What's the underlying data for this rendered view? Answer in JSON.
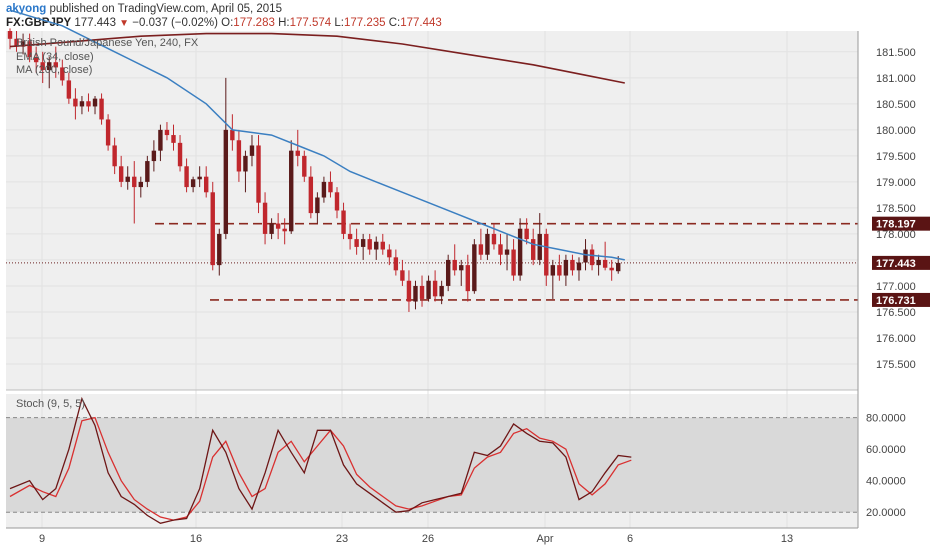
{
  "header": {
    "author": "akyong",
    "published_text": "published on TradingView.com, April 05, 2015",
    "symbol": "FX:GBPJPY",
    "last": "177.443",
    "change": "−0.037 (−0.02%)",
    "o_label": "O:",
    "o_value": "177.283",
    "h_label": "H:",
    "h_value": "177.574",
    "l_label": "L:",
    "l_value": "177.235",
    "c_label": "C:",
    "c_value": "177.443"
  },
  "legend": {
    "line1": "British Pound/Japanese Yen, 240, FX",
    "line2": "EMA (34, close)",
    "line3": "MA (200, close)",
    "stoch": "Stoch (9, 5, 5)"
  },
  "colors": {
    "up": "#5a1a1a",
    "down": "#c0272d",
    "ema": "#3b7fc1",
    "ma": "#7b1f1f",
    "level": "#8b2a20",
    "stoch_k": "#6e1616",
    "stoch_d": "#d93030",
    "stoch_band": "#d9d9d9",
    "panel_bg": "#eeeeee"
  },
  "chart_data": {
    "type": "candlestick",
    "title": "British Pound/Japanese Yen, 240, FX",
    "ylim": [
      175.0,
      181.9
    ],
    "y_ticks": [
      "181.500",
      "181.000",
      "180.500",
      "180.000",
      "179.500",
      "179.000",
      "178.500",
      "178.000",
      "177.500",
      "177.000",
      "176.500",
      "176.000",
      "175.500"
    ],
    "x_ticks": [
      "9",
      "16",
      "23",
      "26",
      "Apr",
      "6",
      "13"
    ],
    "price_labels": [
      {
        "text": "178.197",
        "value": 178.197,
        "style": "dark"
      },
      {
        "text": "177.443",
        "value": 177.443,
        "style": "dark"
      },
      {
        "text": "176.731",
        "value": 176.731,
        "style": "dark"
      }
    ],
    "support_resistance": [
      {
        "name": "resistance",
        "value": 178.197
      },
      {
        "name": "support",
        "value": 176.731
      }
    ],
    "current_price": 177.443,
    "candles": [
      [
        181.9,
        181.95,
        181.55,
        181.75
      ],
      [
        181.75,
        181.9,
        181.5,
        181.6
      ],
      [
        181.6,
        181.85,
        181.45,
        181.7
      ],
      [
        181.7,
        181.85,
        181.3,
        181.4
      ],
      [
        181.4,
        181.6,
        181.1,
        181.3
      ],
      [
        181.3,
        181.5,
        180.9,
        181.15
      ],
      [
        181.15,
        181.4,
        180.8,
        181.3
      ],
      [
        181.3,
        181.6,
        181.0,
        181.2
      ],
      [
        181.2,
        181.35,
        180.85,
        180.95
      ],
      [
        180.95,
        181.1,
        180.5,
        180.6
      ],
      [
        180.6,
        180.8,
        180.2,
        180.45
      ],
      [
        180.45,
        180.65,
        180.3,
        180.55
      ],
      [
        180.55,
        180.7,
        180.35,
        180.45
      ],
      [
        180.45,
        180.65,
        180.3,
        180.6
      ],
      [
        180.6,
        180.7,
        180.1,
        180.2
      ],
      [
        180.2,
        180.3,
        179.6,
        179.7
      ],
      [
        179.7,
        179.85,
        179.15,
        179.3
      ],
      [
        179.3,
        179.5,
        178.9,
        179.0
      ],
      [
        179.0,
        179.3,
        178.85,
        179.1
      ],
      [
        179.1,
        179.4,
        178.2,
        178.9
      ],
      [
        178.9,
        179.1,
        178.7,
        179.0
      ],
      [
        179.0,
        179.5,
        178.9,
        179.4
      ],
      [
        179.4,
        179.8,
        179.2,
        179.6
      ],
      [
        179.6,
        180.1,
        179.4,
        180.0
      ],
      [
        180.0,
        180.15,
        179.8,
        179.9
      ],
      [
        179.9,
        180.1,
        179.6,
        179.75
      ],
      [
        179.75,
        179.9,
        179.2,
        179.3
      ],
      [
        179.3,
        179.45,
        178.8,
        178.9
      ],
      [
        178.9,
        179.1,
        178.8,
        179.05
      ],
      [
        179.05,
        179.3,
        178.9,
        179.1
      ],
      [
        179.1,
        179.3,
        178.7,
        178.8
      ],
      [
        178.8,
        179.0,
        177.3,
        177.4
      ],
      [
        177.4,
        178.1,
        177.2,
        178.0
      ],
      [
        178.0,
        181.0,
        177.9,
        180.0
      ],
      [
        180.0,
        180.3,
        179.6,
        179.8
      ],
      [
        179.8,
        180.0,
        179.0,
        179.2
      ],
      [
        179.2,
        179.6,
        178.8,
        179.5
      ],
      [
        179.5,
        179.9,
        179.3,
        179.7
      ],
      [
        179.7,
        179.9,
        178.4,
        178.6
      ],
      [
        178.6,
        178.8,
        177.8,
        178.0
      ],
      [
        178.0,
        178.3,
        177.9,
        178.2
      ],
      [
        178.2,
        178.4,
        177.9,
        178.1
      ],
      [
        178.1,
        178.3,
        177.8,
        178.05
      ],
      [
        178.05,
        179.8,
        178.0,
        179.6
      ],
      [
        179.6,
        180.0,
        179.3,
        179.5
      ],
      [
        179.5,
        179.6,
        179.0,
        179.1
      ],
      [
        179.1,
        179.3,
        178.3,
        178.4
      ],
      [
        178.4,
        178.8,
        178.2,
        178.7
      ],
      [
        178.7,
        179.1,
        178.6,
        179.0
      ],
      [
        179.0,
        179.2,
        178.7,
        178.8
      ],
      [
        178.8,
        178.9,
        178.3,
        178.45
      ],
      [
        178.45,
        178.6,
        177.9,
        178.0
      ],
      [
        178.0,
        178.2,
        177.7,
        177.9
      ],
      [
        177.9,
        178.1,
        177.6,
        177.75
      ],
      [
        177.75,
        178.0,
        177.5,
        177.9
      ],
      [
        177.9,
        178.0,
        177.6,
        177.7
      ],
      [
        177.7,
        177.95,
        177.5,
        177.85
      ],
      [
        177.85,
        178.0,
        177.6,
        177.7
      ],
      [
        177.7,
        177.8,
        177.4,
        177.55
      ],
      [
        177.55,
        177.7,
        177.2,
        177.3
      ],
      [
        177.3,
        177.5,
        177.0,
        177.1
      ],
      [
        177.1,
        177.3,
        176.5,
        176.7
      ],
      [
        176.7,
        177.1,
        176.55,
        177.0
      ],
      [
        177.0,
        177.2,
        176.6,
        176.75
      ],
      [
        176.75,
        177.2,
        176.7,
        177.1
      ],
      [
        177.1,
        177.3,
        176.7,
        176.8
      ],
      [
        176.8,
        177.1,
        176.65,
        177.0
      ],
      [
        177.0,
        177.6,
        176.9,
        177.5
      ],
      [
        177.5,
        177.8,
        177.2,
        177.3
      ],
      [
        177.3,
        177.5,
        177.0,
        177.4
      ],
      [
        177.4,
        177.6,
        176.7,
        176.9
      ],
      [
        176.9,
        177.9,
        176.85,
        177.8
      ],
      [
        177.8,
        178.1,
        177.5,
        177.6
      ],
      [
        177.6,
        178.1,
        177.5,
        178.0
      ],
      [
        178.0,
        178.2,
        177.7,
        177.8
      ],
      [
        177.8,
        178.0,
        177.4,
        177.6
      ],
      [
        177.6,
        178.0,
        177.3,
        177.7
      ],
      [
        177.7,
        177.9,
        177.1,
        177.2
      ],
      [
        177.2,
        178.3,
        177.1,
        178.1
      ],
      [
        178.1,
        178.3,
        177.8,
        177.9
      ],
      [
        177.9,
        178.1,
        177.4,
        177.5
      ],
      [
        177.5,
        178.4,
        177.4,
        178.0
      ],
      [
        178.0,
        178.1,
        177.0,
        177.2
      ],
      [
        177.2,
        177.5,
        176.75,
        177.4
      ],
      [
        177.4,
        177.6,
        177.1,
        177.2
      ],
      [
        177.2,
        177.6,
        177.0,
        177.5
      ],
      [
        177.5,
        177.6,
        177.2,
        177.3
      ],
      [
        177.3,
        177.55,
        177.1,
        177.45
      ],
      [
        177.45,
        177.9,
        177.3,
        177.7
      ],
      [
        177.7,
        177.8,
        177.3,
        177.4
      ],
      [
        177.4,
        177.6,
        177.2,
        177.5
      ],
      [
        177.5,
        177.85,
        177.3,
        177.35
      ],
      [
        177.35,
        177.5,
        177.1,
        177.3
      ],
      [
        177.283,
        177.574,
        177.235,
        177.443
      ]
    ],
    "ema34": [
      [
        0,
        182.3
      ],
      [
        8,
        182.0
      ],
      [
        16,
        181.5
      ],
      [
        24,
        181.0
      ],
      [
        30,
        180.5
      ],
      [
        34,
        180.0
      ],
      [
        40,
        179.9
      ],
      [
        44,
        179.7
      ],
      [
        48,
        179.5
      ],
      [
        52,
        179.2
      ],
      [
        56,
        179.0
      ],
      [
        60,
        178.8
      ],
      [
        64,
        178.6
      ],
      [
        68,
        178.4
      ],
      [
        72,
        178.2
      ],
      [
        76,
        178.0
      ],
      [
        80,
        177.8
      ],
      [
        84,
        177.7
      ],
      [
        88,
        177.6
      ],
      [
        92,
        177.55
      ],
      [
        94,
        177.5
      ]
    ],
    "ma200": [
      [
        0,
        181.6
      ],
      [
        10,
        181.7
      ],
      [
        20,
        181.8
      ],
      [
        30,
        181.85
      ],
      [
        40,
        181.85
      ],
      [
        50,
        181.8
      ],
      [
        60,
        181.65
      ],
      [
        70,
        181.45
      ],
      [
        80,
        181.25
      ],
      [
        88,
        181.05
      ],
      [
        94,
        180.9
      ]
    ],
    "stochastic": {
      "ylim": [
        10,
        95
      ],
      "y_ticks": [
        "80.0000",
        "60.0000",
        "40.0000",
        "20.0000"
      ],
      "bands": [
        20,
        80
      ],
      "k": [
        [
          0,
          35
        ],
        [
          3,
          40
        ],
        [
          5,
          28
        ],
        [
          7,
          35
        ],
        [
          9,
          60
        ],
        [
          11,
          92
        ],
        [
          13,
          75
        ],
        [
          15,
          45
        ],
        [
          17,
          30
        ],
        [
          19,
          25
        ],
        [
          21,
          18
        ],
        [
          23,
          13
        ],
        [
          25,
          15
        ],
        [
          27,
          16
        ],
        [
          29,
          35
        ],
        [
          31,
          72
        ],
        [
          33,
          58
        ],
        [
          35,
          35
        ],
        [
          37,
          22
        ],
        [
          39,
          45
        ],
        [
          41,
          72
        ],
        [
          43,
          58
        ],
        [
          45,
          45
        ],
        [
          47,
          72
        ],
        [
          49,
          72
        ],
        [
          51,
          50
        ],
        [
          53,
          38
        ],
        [
          55,
          32
        ],
        [
          57,
          26
        ],
        [
          59,
          20
        ],
        [
          61,
          21
        ],
        [
          63,
          26
        ],
        [
          65,
          28
        ],
        [
          67,
          30
        ],
        [
          69,
          32
        ],
        [
          71,
          58
        ],
        [
          73,
          56
        ],
        [
          75,
          62
        ],
        [
          77,
          76
        ],
        [
          79,
          70
        ],
        [
          81,
          65
        ],
        [
          83,
          64
        ],
        [
          85,
          55
        ],
        [
          87,
          28
        ],
        [
          89,
          33
        ],
        [
          91,
          45
        ],
        [
          93,
          56
        ],
        [
          95,
          55
        ]
      ],
      "d": [
        [
          0,
          30
        ],
        [
          3,
          37
        ],
        [
          5,
          33
        ],
        [
          7,
          30
        ],
        [
          9,
          48
        ],
        [
          11,
          78
        ],
        [
          13,
          80
        ],
        [
          15,
          58
        ],
        [
          17,
          40
        ],
        [
          19,
          28
        ],
        [
          21,
          22
        ],
        [
          23,
          17
        ],
        [
          25,
          15
        ],
        [
          27,
          17
        ],
        [
          29,
          27
        ],
        [
          31,
          55
        ],
        [
          33,
          65
        ],
        [
          35,
          45
        ],
        [
          37,
          30
        ],
        [
          39,
          35
        ],
        [
          41,
          58
        ],
        [
          43,
          65
        ],
        [
          45,
          52
        ],
        [
          47,
          62
        ],
        [
          49,
          72
        ],
        [
          51,
          62
        ],
        [
          53,
          44
        ],
        [
          55,
          36
        ],
        [
          57,
          30
        ],
        [
          59,
          24
        ],
        [
          61,
          22
        ],
        [
          63,
          24
        ],
        [
          65,
          27
        ],
        [
          67,
          30
        ],
        [
          69,
          31
        ],
        [
          71,
          48
        ],
        [
          73,
          55
        ],
        [
          75,
          58
        ],
        [
          77,
          70
        ],
        [
          79,
          73
        ],
        [
          81,
          67
        ],
        [
          83,
          65
        ],
        [
          85,
          60
        ],
        [
          87,
          38
        ],
        [
          89,
          31
        ],
        [
          91,
          38
        ],
        [
          93,
          50
        ],
        [
          95,
          53
        ]
      ]
    }
  }
}
